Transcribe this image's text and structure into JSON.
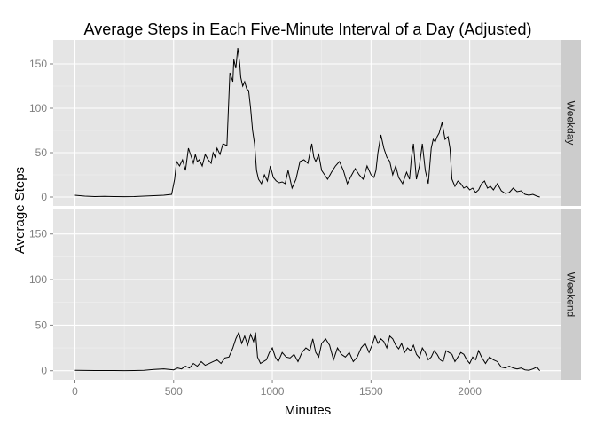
{
  "chart_data": {
    "type": "line",
    "title": "Average Steps in Each Five-Minute Interval of a Day (Adjusted)",
    "xlabel": "Minutes",
    "ylabel": "Average Steps",
    "xlim": [
      -110,
      2460
    ],
    "ylim": [
      -10,
      177
    ],
    "x_ticks": [
      0,
      500,
      1000,
      1500,
      2000
    ],
    "y_ticks": [
      0,
      50,
      100,
      150
    ],
    "grid": true,
    "facet_labels": [
      "Weekday",
      "Weekend"
    ],
    "series": [
      {
        "name": "Weekday",
        "x": [
          0,
          50,
          100,
          150,
          200,
          250,
          300,
          350,
          400,
          450,
          490,
          505,
          515,
          530,
          545,
          560,
          575,
          590,
          600,
          610,
          620,
          630,
          645,
          660,
          675,
          690,
          700,
          710,
          720,
          735,
          750,
          770,
          785,
          800,
          805,
          815,
          825,
          835,
          840,
          850,
          860,
          870,
          880,
          890,
          900,
          910,
          920,
          930,
          945,
          960,
          975,
          990,
          1005,
          1020,
          1035,
          1050,
          1065,
          1080,
          1100,
          1120,
          1140,
          1160,
          1180,
          1200,
          1210,
          1220,
          1235,
          1250,
          1265,
          1280,
          1300,
          1320,
          1340,
          1360,
          1380,
          1400,
          1420,
          1440,
          1460,
          1480,
          1500,
          1515,
          1525,
          1535,
          1550,
          1565,
          1580,
          1595,
          1610,
          1625,
          1640,
          1660,
          1680,
          1695,
          1705,
          1715,
          1730,
          1745,
          1760,
          1775,
          1790,
          1805,
          1815,
          1825,
          1835,
          1845,
          1860,
          1875,
          1890,
          1900,
          1910,
          1925,
          1940,
          1955,
          1970,
          1985,
          2000,
          2015,
          2030,
          2045,
          2060,
          2075,
          2090,
          2105,
          2120,
          2140,
          2160,
          2180,
          2200,
          2220,
          2240,
          2260,
          2280,
          2300,
          2320,
          2340,
          2355
        ],
        "values": [
          2,
          1,
          0.5,
          0.8,
          0.5,
          0.4,
          0.5,
          1,
          1.5,
          2,
          3,
          20,
          40,
          35,
          42,
          30,
          55,
          45,
          38,
          48,
          40,
          42,
          35,
          48,
          42,
          38,
          50,
          45,
          55,
          48,
          60,
          58,
          140,
          130,
          155,
          145,
          168,
          150,
          135,
          125,
          130,
          122,
          120,
          100,
          75,
          60,
          30,
          20,
          15,
          25,
          18,
          35,
          22,
          18,
          16,
          17,
          15,
          30,
          10,
          20,
          40,
          42,
          38,
          60,
          45,
          40,
          48,
          30,
          25,
          20,
          28,
          35,
          40,
          30,
          15,
          24,
          32,
          25,
          20,
          35,
          25,
          22,
          30,
          50,
          70,
          55,
          45,
          40,
          25,
          35,
          22,
          15,
          28,
          20,
          45,
          60,
          20,
          35,
          60,
          30,
          15,
          55,
          65,
          62,
          68,
          72,
          84,
          65,
          68,
          55,
          20,
          12,
          18,
          15,
          10,
          12,
          8,
          10,
          5,
          8,
          15,
          18,
          10,
          12,
          8,
          15,
          7,
          4,
          5,
          10,
          6,
          7,
          3,
          2,
          3,
          1,
          0
        ]
      },
      {
        "name": "Weekend",
        "x": [
          0,
          50,
          100,
          150,
          200,
          250,
          300,
          350,
          400,
          450,
          500,
          520,
          540,
          560,
          580,
          600,
          620,
          640,
          660,
          680,
          700,
          720,
          740,
          760,
          780,
          800,
          815,
          830,
          845,
          860,
          875,
          890,
          905,
          915,
          925,
          940,
          955,
          970,
          985,
          1000,
          1015,
          1030,
          1050,
          1070,
          1090,
          1110,
          1130,
          1150,
          1170,
          1190,
          1205,
          1220,
          1235,
          1250,
          1270,
          1290,
          1310,
          1330,
          1350,
          1370,
          1390,
          1410,
          1430,
          1450,
          1470,
          1490,
          1505,
          1520,
          1535,
          1550,
          1565,
          1580,
          1595,
          1610,
          1625,
          1640,
          1655,
          1670,
          1685,
          1700,
          1715,
          1730,
          1745,
          1760,
          1775,
          1790,
          1805,
          1820,
          1835,
          1850,
          1865,
          1880,
          1895,
          1910,
          1925,
          1940,
          1955,
          1970,
          1985,
          2000,
          2015,
          2030,
          2045,
          2060,
          2080,
          2100,
          2120,
          2140,
          2160,
          2180,
          2200,
          2220,
          2240,
          2260,
          2280,
          2300,
          2320,
          2340,
          2355
        ],
        "values": [
          0.5,
          0.3,
          0.2,
          0.2,
          0.2,
          0.1,
          0.2,
          0.5,
          1.5,
          2,
          1,
          3,
          2,
          5,
          3,
          8,
          5,
          10,
          6,
          8,
          10,
          12,
          8,
          14,
          15,
          25,
          35,
          42,
          30,
          38,
          28,
          40,
          32,
          42,
          15,
          8,
          10,
          12,
          20,
          25,
          15,
          10,
          20,
          15,
          14,
          18,
          10,
          20,
          25,
          22,
          35,
          20,
          15,
          30,
          35,
          28,
          12,
          25,
          18,
          15,
          20,
          10,
          15,
          25,
          30,
          20,
          28,
          38,
          30,
          35,
          32,
          25,
          38,
          35,
          28,
          24,
          30,
          20,
          25,
          22,
          28,
          18,
          14,
          25,
          20,
          12,
          15,
          22,
          18,
          12,
          10,
          22,
          20,
          18,
          10,
          15,
          20,
          18,
          12,
          8,
          15,
          12,
          22,
          15,
          8,
          15,
          12,
          10,
          4,
          3,
          5,
          3,
          2,
          3,
          1,
          0.5,
          2,
          4,
          0
        ]
      }
    ]
  }
}
